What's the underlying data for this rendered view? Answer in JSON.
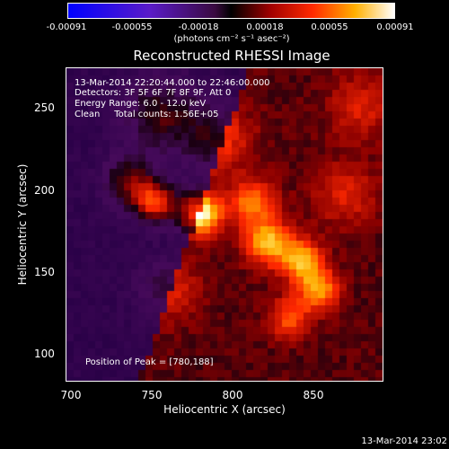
{
  "colorbar": {
    "ticks": [
      "-0.00091",
      "-0.00055",
      "-0.00018",
      "0.00018",
      "0.00055",
      "0.00091"
    ],
    "units": "(photons cm⁻² s⁻¹ asec⁻²)"
  },
  "title": "Reconstructed RHESSI Image",
  "annotations": {
    "time_range": "13-Mar-2014 22:20:44.000 to 22:46:00.000",
    "detectors": "Detectors: 3F 5F 6F 7F 8F 9F, Att 0",
    "energy_range": "Energy Range: 6.0 - 12.0 keV",
    "method_counts": "Clean     Total counts: 1.56E+05",
    "peak_position": "Position of Peak = [780,188]"
  },
  "axes": {
    "xlabel": "Heliocentric X (arcsec)",
    "ylabel": "Heliocentric Y (arcsec)",
    "x_ticks": [
      "700",
      "750",
      "800",
      "850"
    ],
    "y_ticks": [
      "250",
      "200",
      "150",
      "100"
    ]
  },
  "footer": "13-Mar-2014 23:02",
  "chart_data": {
    "type": "heatmap",
    "title": "Reconstructed RHESSI Image",
    "xlabel": "Heliocentric X (arcsec)",
    "ylabel": "Heliocentric Y (arcsec)",
    "xlim": [
      697,
      893
    ],
    "ylim": [
      83,
      279
    ],
    "colorbar_range": [
      -0.00091,
      0.00091
    ],
    "colormap": "blue-purple-red-orange-yellow-white",
    "peak": [
      780,
      188
    ],
    "sources": [
      {
        "x": 780,
        "y": 188,
        "sigma": 9,
        "weight": 1.0
      },
      {
        "x": 752,
        "y": 195,
        "sigma": 9,
        "weight": 0.85
      },
      {
        "x": 736,
        "y": 208,
        "sigma": 11,
        "weight": 0.55
      },
      {
        "x": 822,
        "y": 170,
        "sigma": 10,
        "weight": 0.75
      },
      {
        "x": 843,
        "y": 158,
        "sigma": 9,
        "weight": 0.7
      },
      {
        "x": 853,
        "y": 140,
        "sigma": 9,
        "weight": 0.65
      },
      {
        "x": 812,
        "y": 195,
        "sigma": 10,
        "weight": 0.55
      },
      {
        "x": 835,
        "y": 122,
        "sigma": 9,
        "weight": 0.45
      },
      {
        "x": 755,
        "y": 250,
        "sigma": 16,
        "weight": 0.45
      },
      {
        "x": 790,
        "y": 235,
        "sigma": 15,
        "weight": 0.4
      },
      {
        "x": 870,
        "y": 200,
        "sigma": 14,
        "weight": 0.3
      },
      {
        "x": 760,
        "y": 140,
        "sigma": 14,
        "weight": 0.3
      },
      {
        "x": 880,
        "y": 255,
        "sigma": 14,
        "weight": 0.3
      }
    ]
  }
}
